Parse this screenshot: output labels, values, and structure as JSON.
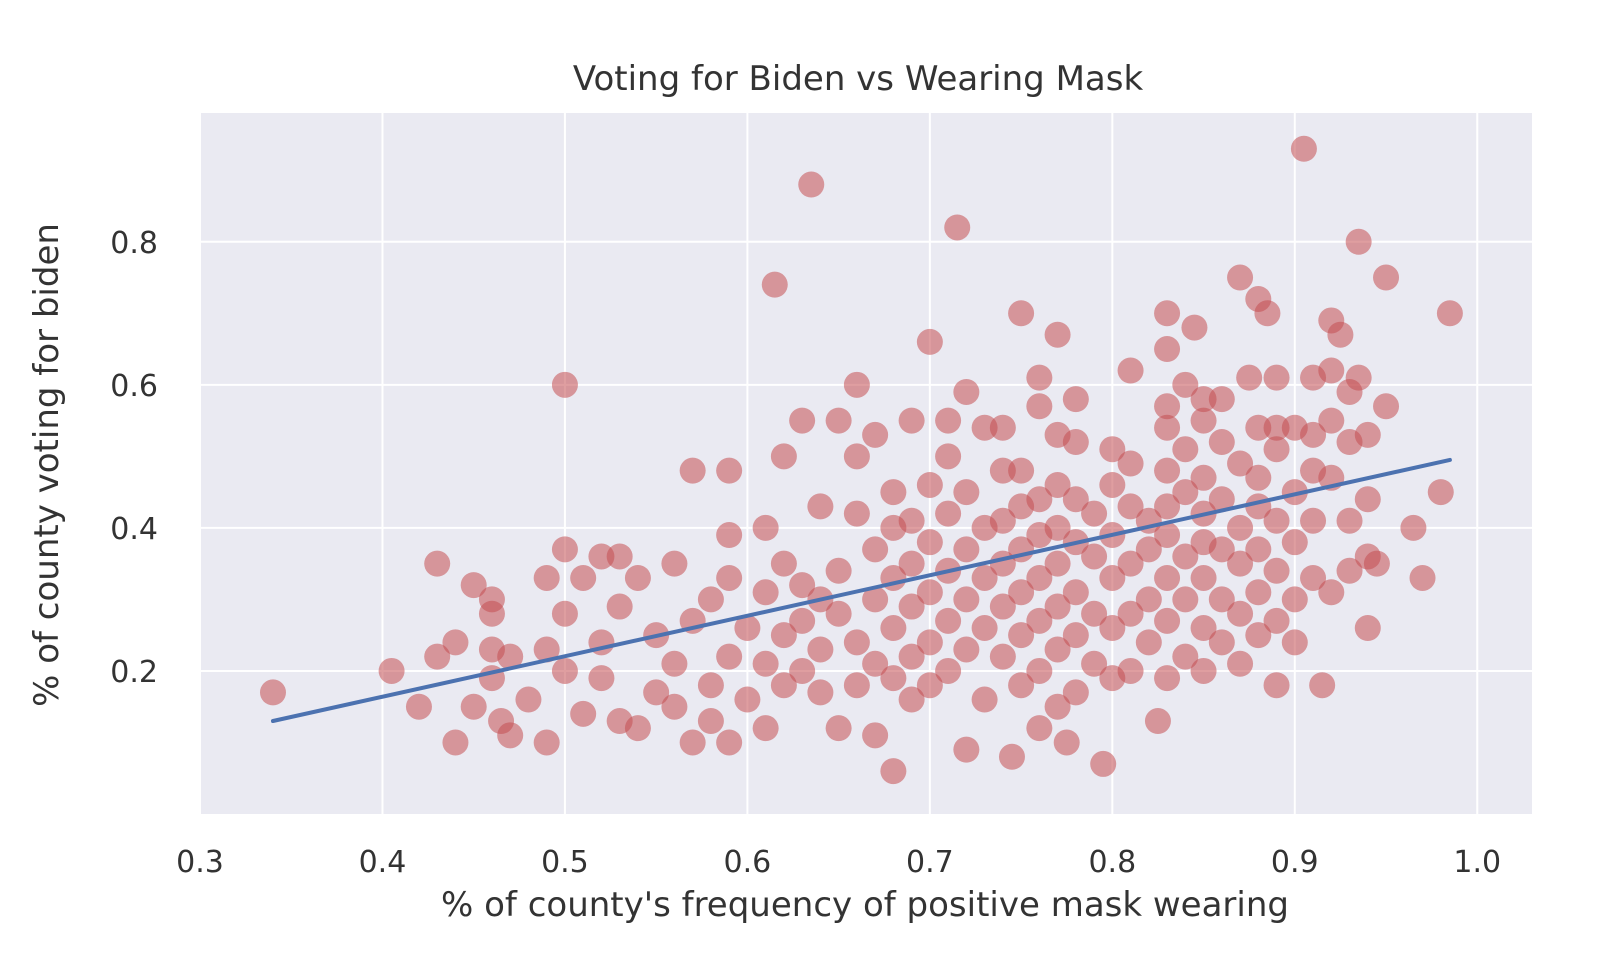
{
  "chart_data": {
    "type": "scatter",
    "title": "Voting for Biden vs Wearing Mask",
    "xlabel": "% of county's frequency of positive mask wearing",
    "ylabel": "% of county voting for biden",
    "xlim": [
      0.3,
      1.03
    ],
    "ylim": [
      0.0,
      0.98
    ],
    "grid": true,
    "xticks": [
      0.3,
      0.4,
      0.5,
      0.6,
      0.7,
      0.8,
      0.9,
      1.0
    ],
    "xtick_labels": [
      "0.3",
      "0.4",
      "0.5",
      "0.6",
      "0.7",
      "0.8",
      "0.9",
      "1.0"
    ],
    "yticks": [
      0.2,
      0.4,
      0.6,
      0.8
    ],
    "ytick_labels": [
      "0.2",
      "0.4",
      "0.6",
      "0.8"
    ],
    "colors": {
      "background": "#ffffff",
      "plot_background": "#eaeaf2",
      "grid": "#ffffff",
      "point": "#c44e52",
      "trend_line": "#4c72b0"
    },
    "series": [
      {
        "kind": "points",
        "points": [
          [
            0.34,
            0.17
          ],
          [
            0.405,
            0.2
          ],
          [
            0.42,
            0.15
          ],
          [
            0.43,
            0.35
          ],
          [
            0.43,
            0.22
          ],
          [
            0.44,
            0.24
          ],
          [
            0.44,
            0.1
          ],
          [
            0.45,
            0.32
          ],
          [
            0.45,
            0.15
          ],
          [
            0.46,
            0.3
          ],
          [
            0.46,
            0.28
          ],
          [
            0.46,
            0.23
          ],
          [
            0.46,
            0.19
          ],
          [
            0.465,
            0.13
          ],
          [
            0.47,
            0.11
          ],
          [
            0.47,
            0.22
          ],
          [
            0.48,
            0.16
          ],
          [
            0.49,
            0.23
          ],
          [
            0.49,
            0.33
          ],
          [
            0.49,
            0.1
          ],
          [
            0.5,
            0.6
          ],
          [
            0.5,
            0.37
          ],
          [
            0.5,
            0.28
          ],
          [
            0.5,
            0.2
          ],
          [
            0.51,
            0.14
          ],
          [
            0.51,
            0.33
          ],
          [
            0.52,
            0.36
          ],
          [
            0.52,
            0.24
          ],
          [
            0.52,
            0.19
          ],
          [
            0.53,
            0.36
          ],
          [
            0.53,
            0.29
          ],
          [
            0.53,
            0.13
          ],
          [
            0.54,
            0.33
          ],
          [
            0.54,
            0.12
          ],
          [
            0.55,
            0.25
          ],
          [
            0.55,
            0.17
          ],
          [
            0.56,
            0.35
          ],
          [
            0.56,
            0.21
          ],
          [
            0.56,
            0.15
          ],
          [
            0.57,
            0.48
          ],
          [
            0.57,
            0.27
          ],
          [
            0.57,
            0.1
          ],
          [
            0.58,
            0.3
          ],
          [
            0.58,
            0.18
          ],
          [
            0.58,
            0.13
          ],
          [
            0.59,
            0.48
          ],
          [
            0.59,
            0.39
          ],
          [
            0.59,
            0.33
          ],
          [
            0.59,
            0.22
          ],
          [
            0.59,
            0.1
          ],
          [
            0.6,
            0.26
          ],
          [
            0.6,
            0.16
          ],
          [
            0.61,
            0.4
          ],
          [
            0.61,
            0.31
          ],
          [
            0.61,
            0.21
          ],
          [
            0.61,
            0.12
          ],
          [
            0.615,
            0.74
          ],
          [
            0.62,
            0.5
          ],
          [
            0.62,
            0.35
          ],
          [
            0.62,
            0.25
          ],
          [
            0.62,
            0.18
          ],
          [
            0.63,
            0.55
          ],
          [
            0.63,
            0.32
          ],
          [
            0.63,
            0.27
          ],
          [
            0.63,
            0.2
          ],
          [
            0.635,
            0.88
          ],
          [
            0.64,
            0.43
          ],
          [
            0.64,
            0.3
          ],
          [
            0.64,
            0.23
          ],
          [
            0.64,
            0.17
          ],
          [
            0.65,
            0.55
          ],
          [
            0.65,
            0.34
          ],
          [
            0.65,
            0.28
          ],
          [
            0.65,
            0.12
          ],
          [
            0.66,
            0.6
          ],
          [
            0.66,
            0.5
          ],
          [
            0.66,
            0.42
          ],
          [
            0.66,
            0.24
          ],
          [
            0.66,
            0.18
          ],
          [
            0.67,
            0.53
          ],
          [
            0.67,
            0.37
          ],
          [
            0.67,
            0.3
          ],
          [
            0.67,
            0.21
          ],
          [
            0.67,
            0.11
          ],
          [
            0.68,
            0.45
          ],
          [
            0.68,
            0.4
          ],
          [
            0.68,
            0.33
          ],
          [
            0.68,
            0.26
          ],
          [
            0.68,
            0.19
          ],
          [
            0.68,
            0.06
          ],
          [
            0.69,
            0.55
          ],
          [
            0.69,
            0.41
          ],
          [
            0.69,
            0.35
          ],
          [
            0.69,
            0.29
          ],
          [
            0.69,
            0.22
          ],
          [
            0.69,
            0.16
          ],
          [
            0.7,
            0.66
          ],
          [
            0.7,
            0.46
          ],
          [
            0.7,
            0.38
          ],
          [
            0.7,
            0.31
          ],
          [
            0.7,
            0.24
          ],
          [
            0.7,
            0.18
          ],
          [
            0.71,
            0.55
          ],
          [
            0.71,
            0.5
          ],
          [
            0.71,
            0.42
          ],
          [
            0.71,
            0.34
          ],
          [
            0.71,
            0.27
          ],
          [
            0.71,
            0.2
          ],
          [
            0.715,
            0.82
          ],
          [
            0.72,
            0.59
          ],
          [
            0.72,
            0.45
          ],
          [
            0.72,
            0.37
          ],
          [
            0.72,
            0.3
          ],
          [
            0.72,
            0.23
          ],
          [
            0.72,
            0.09
          ],
          [
            0.73,
            0.54
          ],
          [
            0.73,
            0.4
          ],
          [
            0.73,
            0.33
          ],
          [
            0.73,
            0.26
          ],
          [
            0.73,
            0.16
          ],
          [
            0.74,
            0.54
          ],
          [
            0.74,
            0.48
          ],
          [
            0.74,
            0.41
          ],
          [
            0.74,
            0.35
          ],
          [
            0.74,
            0.29
          ],
          [
            0.74,
            0.22
          ],
          [
            0.745,
            0.08
          ],
          [
            0.75,
            0.7
          ],
          [
            0.75,
            0.48
          ],
          [
            0.75,
            0.43
          ],
          [
            0.75,
            0.37
          ],
          [
            0.75,
            0.31
          ],
          [
            0.75,
            0.25
          ],
          [
            0.75,
            0.18
          ],
          [
            0.76,
            0.61
          ],
          [
            0.76,
            0.57
          ],
          [
            0.76,
            0.44
          ],
          [
            0.76,
            0.39
          ],
          [
            0.76,
            0.33
          ],
          [
            0.76,
            0.27
          ],
          [
            0.76,
            0.2
          ],
          [
            0.76,
            0.12
          ],
          [
            0.77,
            0.67
          ],
          [
            0.77,
            0.53
          ],
          [
            0.77,
            0.46
          ],
          [
            0.77,
            0.4
          ],
          [
            0.77,
            0.35
          ],
          [
            0.77,
            0.29
          ],
          [
            0.77,
            0.23
          ],
          [
            0.77,
            0.15
          ],
          [
            0.775,
            0.1
          ],
          [
            0.78,
            0.58
          ],
          [
            0.78,
            0.52
          ],
          [
            0.78,
            0.44
          ],
          [
            0.78,
            0.38
          ],
          [
            0.78,
            0.31
          ],
          [
            0.78,
            0.25
          ],
          [
            0.78,
            0.17
          ],
          [
            0.79,
            0.42
          ],
          [
            0.79,
            0.36
          ],
          [
            0.79,
            0.28
          ],
          [
            0.79,
            0.21
          ],
          [
            0.795,
            0.07
          ],
          [
            0.8,
            0.51
          ],
          [
            0.8,
            0.46
          ],
          [
            0.8,
            0.39
          ],
          [
            0.8,
            0.33
          ],
          [
            0.8,
            0.26
          ],
          [
            0.8,
            0.19
          ],
          [
            0.81,
            0.62
          ],
          [
            0.81,
            0.49
          ],
          [
            0.81,
            0.43
          ],
          [
            0.81,
            0.35
          ],
          [
            0.81,
            0.28
          ],
          [
            0.81,
            0.2
          ],
          [
            0.82,
            0.41
          ],
          [
            0.82,
            0.37
          ],
          [
            0.82,
            0.3
          ],
          [
            0.82,
            0.24
          ],
          [
            0.825,
            0.13
          ],
          [
            0.83,
            0.7
          ],
          [
            0.83,
            0.65
          ],
          [
            0.83,
            0.57
          ],
          [
            0.83,
            0.54
          ],
          [
            0.83,
            0.48
          ],
          [
            0.83,
            0.43
          ],
          [
            0.83,
            0.39
          ],
          [
            0.83,
            0.33
          ],
          [
            0.83,
            0.27
          ],
          [
            0.83,
            0.19
          ],
          [
            0.84,
            0.6
          ],
          [
            0.84,
            0.51
          ],
          [
            0.84,
            0.45
          ],
          [
            0.84,
            0.36
          ],
          [
            0.84,
            0.3
          ],
          [
            0.84,
            0.22
          ],
          [
            0.845,
            0.68
          ],
          [
            0.85,
            0.58
          ],
          [
            0.85,
            0.55
          ],
          [
            0.85,
            0.47
          ],
          [
            0.85,
            0.42
          ],
          [
            0.85,
            0.38
          ],
          [
            0.85,
            0.33
          ],
          [
            0.85,
            0.26
          ],
          [
            0.85,
            0.2
          ],
          [
            0.86,
            0.58
          ],
          [
            0.86,
            0.52
          ],
          [
            0.86,
            0.44
          ],
          [
            0.86,
            0.37
          ],
          [
            0.86,
            0.3
          ],
          [
            0.86,
            0.24
          ],
          [
            0.87,
            0.75
          ],
          [
            0.87,
            0.49
          ],
          [
            0.87,
            0.4
          ],
          [
            0.87,
            0.35
          ],
          [
            0.87,
            0.28
          ],
          [
            0.87,
            0.21
          ],
          [
            0.875,
            0.61
          ],
          [
            0.88,
            0.72
          ],
          [
            0.88,
            0.54
          ],
          [
            0.88,
            0.47
          ],
          [
            0.88,
            0.43
          ],
          [
            0.88,
            0.37
          ],
          [
            0.88,
            0.31
          ],
          [
            0.88,
            0.25
          ],
          [
            0.885,
            0.7
          ],
          [
            0.89,
            0.61
          ],
          [
            0.89,
            0.54
          ],
          [
            0.89,
            0.51
          ],
          [
            0.89,
            0.41
          ],
          [
            0.89,
            0.34
          ],
          [
            0.89,
            0.27
          ],
          [
            0.89,
            0.18
          ],
          [
            0.9,
            0.54
          ],
          [
            0.9,
            0.45
          ],
          [
            0.9,
            0.38
          ],
          [
            0.9,
            0.3
          ],
          [
            0.9,
            0.24
          ],
          [
            0.905,
            0.93
          ],
          [
            0.91,
            0.61
          ],
          [
            0.91,
            0.53
          ],
          [
            0.91,
            0.48
          ],
          [
            0.91,
            0.41
          ],
          [
            0.91,
            0.33
          ],
          [
            0.915,
            0.18
          ],
          [
            0.92,
            0.69
          ],
          [
            0.92,
            0.62
          ],
          [
            0.92,
            0.55
          ],
          [
            0.92,
            0.47
          ],
          [
            0.92,
            0.31
          ],
          [
            0.925,
            0.67
          ],
          [
            0.93,
            0.59
          ],
          [
            0.93,
            0.52
          ],
          [
            0.93,
            0.41
          ],
          [
            0.93,
            0.34
          ],
          [
            0.935,
            0.8
          ],
          [
            0.935,
            0.61
          ],
          [
            0.94,
            0.53
          ],
          [
            0.94,
            0.44
          ],
          [
            0.94,
            0.36
          ],
          [
            0.94,
            0.26
          ],
          [
            0.945,
            0.35
          ],
          [
            0.95,
            0.57
          ],
          [
            0.95,
            0.75
          ],
          [
            0.965,
            0.4
          ],
          [
            0.97,
            0.33
          ],
          [
            0.98,
            0.45
          ],
          [
            0.985,
            0.7
          ]
        ]
      },
      {
        "kind": "line",
        "points": [
          [
            0.34,
            0.13
          ],
          [
            0.985,
            0.495
          ]
        ]
      }
    ]
  }
}
